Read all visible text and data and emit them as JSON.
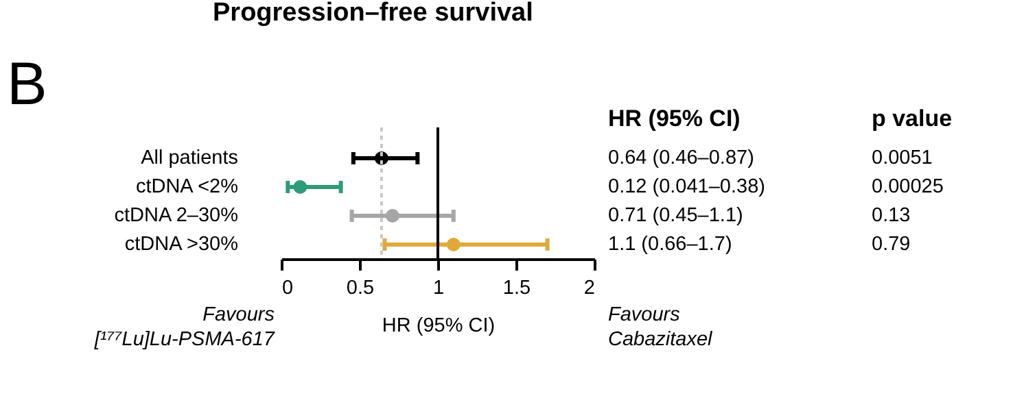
{
  "chart_data": {
    "type": "scatter",
    "title": "Progression–free survival",
    "xlabel": "HR (95% CI)",
    "categories": [
      "All patients",
      "ctDNA <2%",
      "ctDNA 2–30%",
      "ctDNA >30%"
    ],
    "orientation": "horizontal",
    "values": [
      0.64,
      0.12,
      0.71,
      1.1
    ],
    "errors": [
      [
        0.46,
        0.87
      ],
      [
        0.041,
        0.38
      ],
      [
        0.45,
        1.1
      ],
      [
        0.66,
        1.7
      ]
    ],
    "colors": [
      "#000000",
      "#2e9c78",
      "#a6a6a6",
      "#e0a93a"
    ],
    "xlim": [
      0,
      2
    ],
    "xticks": [
      0,
      0.5,
      1,
      1.5,
      2
    ],
    "ref_lines": [
      {
        "axis": "x",
        "value": 0.64,
        "color": "#c8c8c8",
        "line_style": "dotted"
      },
      {
        "axis": "x",
        "value": 1,
        "color": "#000000",
        "line_style": "solid"
      }
    ],
    "marker": "circle",
    "grid": false,
    "legend": false,
    "annotations": [
      "B",
      "HR (95% CI)",
      "p value",
      "0.64 (0.46–0.87)",
      "0.12 (0.041–0.38)",
      "0.71 (0.45–1.1)",
      "1.1 (0.66–1.7)",
      "0.0051",
      "0.00025",
      "0.13",
      "0.79",
      "Favours\n[¹⁷⁷Lu]Lu-PSMA-617",
      "Favours\nCabazitaxel"
    ]
  }
}
